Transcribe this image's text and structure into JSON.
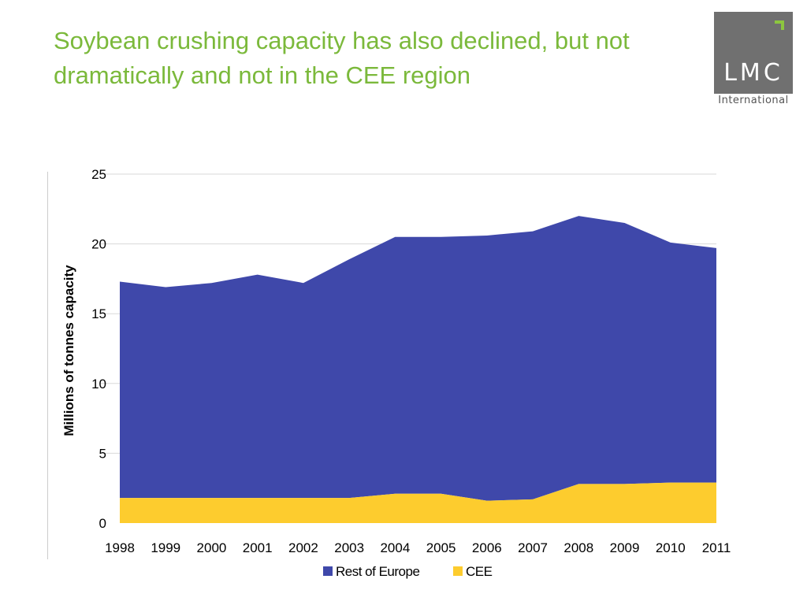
{
  "header": {
    "title": "Soybean crushing capacity has also declined, but not dramatically and not in the CEE region"
  },
  "logo": {
    "text": "LMC",
    "subtitle": "International",
    "box_color": "#707070",
    "accent_color": "#8cc63f"
  },
  "chart_data": {
    "type": "area",
    "stacked": true,
    "title": "",
    "xlabel": "",
    "ylabel": "Millions of tonnes capacity",
    "ylim": [
      0,
      25
    ],
    "yticks": [
      0,
      5,
      10,
      15,
      20,
      25
    ],
    "grid": true,
    "legend_position": "bottom",
    "categories": [
      "1998",
      "1999",
      "2000",
      "2001",
      "2002",
      "2003",
      "2004",
      "2005",
      "2006",
      "2007",
      "2008",
      "2009",
      "2010",
      "2011"
    ],
    "series": [
      {
        "name": "Rest of Europe",
        "color": "#3f48aa",
        "values": [
          15.5,
          15.1,
          15.4,
          16.0,
          15.4,
          17.1,
          18.4,
          18.4,
          19.0,
          19.2,
          19.2,
          18.7,
          17.2,
          16.8
        ]
      },
      {
        "name": "CEE",
        "color": "#fdcc2e",
        "values": [
          1.8,
          1.8,
          1.8,
          1.8,
          1.8,
          1.8,
          2.1,
          2.1,
          1.6,
          1.7,
          2.8,
          2.8,
          2.9,
          2.9
        ]
      }
    ]
  }
}
